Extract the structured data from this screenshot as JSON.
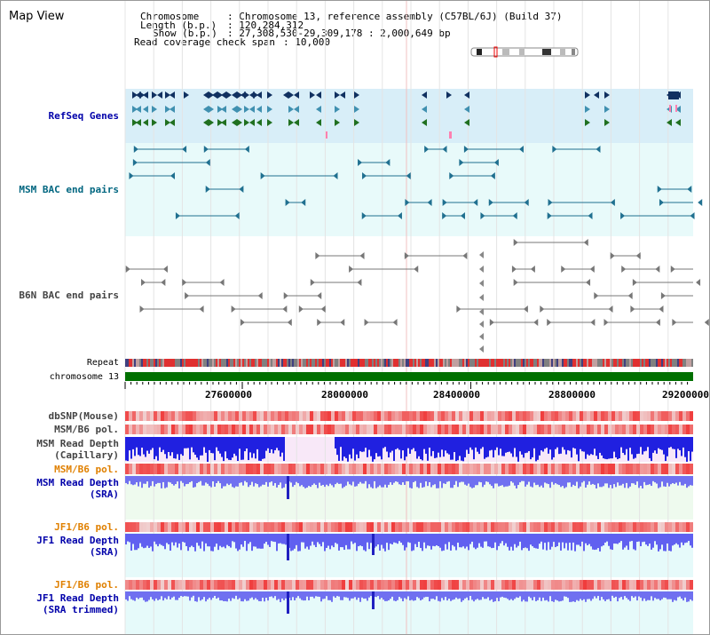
{
  "title": "Map View",
  "info": {
    "chromosome_label": "Chromosome",
    "chromosome_value": ": Chromosome 13, reference assembly (C57BL/6J) (Build 37)",
    "length_label": "Length (b.p.)",
    "length_value": ": 120,284,312",
    "show_label": "Show (b.p.)",
    "show_value": ": 27,308,530-29,309,178 : 2,000,649 bp",
    "coverage_label": "Read coverage check span",
    "coverage_value": ": 10,000"
  },
  "tracks": {
    "refseq": "RefSeq Genes",
    "msm_bac": "MSM BAC end pairs",
    "b6n_bac": "B6N BAC end pairs",
    "repeat": "Repeat",
    "chromosome": "chromosome 13",
    "dbsnp": "dbSNP(Mouse)",
    "msm_b6_pol_1": "MSM/B6 pol.",
    "msm_read_depth_cap_1": "MSM Read Depth",
    "msm_read_depth_cap_2": "(Capillary)",
    "msm_b6_pol_2": "MSM/B6 pol.",
    "msm_read_depth_sra_1": "MSM Read Depth",
    "msm_read_depth_sra_2": "(SRA)",
    "jf1_b6_pol_1": "JF1/B6 pol.",
    "jf1_read_depth_sra_1": "JF1 Read Depth",
    "jf1_read_depth_sra_2": "(SRA)",
    "jf1_b6_pol_2": "JF1/B6 pol.",
    "jf1_read_depth_trim_1": "JF1 Read Depth",
    "jf1_read_depth_trim_2": "(SRA trimmed)"
  },
  "axis_ticks": [
    "27600000",
    "28000000",
    "28400000",
    "28800000",
    "29200000"
  ],
  "colors": {
    "refseq_bg": "#d8eef8",
    "bac_bg": "#e8fafa",
    "chromosome_bar": "#007000",
    "depth_blue": "#2020e0",
    "pol_red": "#e83030",
    "pink_bg": "#f8e8f8",
    "green_bg": "#eefaee",
    "cyan_bg": "#e6fafa"
  }
}
